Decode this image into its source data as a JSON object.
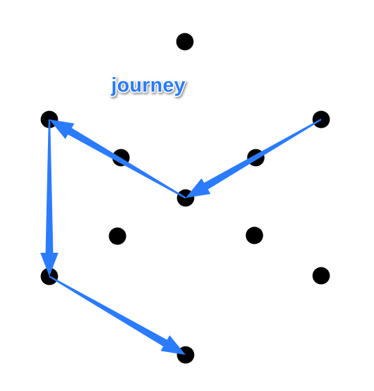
{
  "label": "journey",
  "colors": {
    "arrow": "#2b7bff",
    "dot": "#000000",
    "label_fill": "#2b7bff",
    "label_stroke": "#ffffff"
  },
  "dots": [
    {
      "id": "top"
    },
    {
      "id": "upper-left"
    },
    {
      "id": "upper-right"
    },
    {
      "id": "inner-upper-left"
    },
    {
      "id": "inner-upper-right"
    },
    {
      "id": "center"
    },
    {
      "id": "inner-lower-left"
    },
    {
      "id": "inner-lower-right"
    },
    {
      "id": "lower-left"
    },
    {
      "id": "lower-right"
    },
    {
      "id": "bottom"
    }
  ],
  "path": [
    "upper-right",
    "center",
    "upper-left",
    "lower-left",
    "bottom"
  ]
}
